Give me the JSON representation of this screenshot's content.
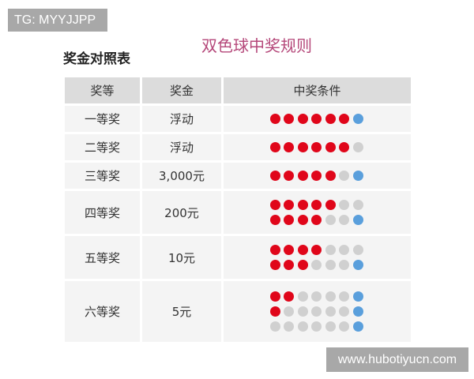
{
  "watermark_top": "TG: MYYJJPP",
  "watermark_bottom": "www.hubotiyucn.com",
  "title": "双色球中奖规则",
  "subtitle": "奖金对照表",
  "colors": {
    "red_ball": "#e0061a",
    "blue_ball": "#5a9fdc",
    "unmatched_ball": "#d0d0d0",
    "title": "#b5487a"
  },
  "table": {
    "headers": [
      "奖等",
      "奖金",
      "中奖条件"
    ],
    "rows": [
      {
        "level": "一等奖",
        "prize": "浮动",
        "conditions": [
          {
            "red": 6,
            "blue": 1
          }
        ]
      },
      {
        "level": "二等奖",
        "prize": "浮动",
        "conditions": [
          {
            "red": 6,
            "blue": 0
          }
        ]
      },
      {
        "level": "三等奖",
        "prize": "3,000元",
        "conditions": [
          {
            "red": 5,
            "blue": 1
          }
        ]
      },
      {
        "level": "四等奖",
        "prize": "200元",
        "conditions": [
          {
            "red": 5,
            "blue": 0
          },
          {
            "red": 4,
            "blue": 1
          }
        ]
      },
      {
        "level": "五等奖",
        "prize": "10元",
        "conditions": [
          {
            "red": 4,
            "blue": 0
          },
          {
            "red": 3,
            "blue": 1
          }
        ]
      },
      {
        "level": "六等奖",
        "prize": "5元",
        "conditions": [
          {
            "red": 2,
            "blue": 1
          },
          {
            "red": 1,
            "blue": 1
          },
          {
            "red": 0,
            "blue": 1
          }
        ]
      }
    ]
  }
}
